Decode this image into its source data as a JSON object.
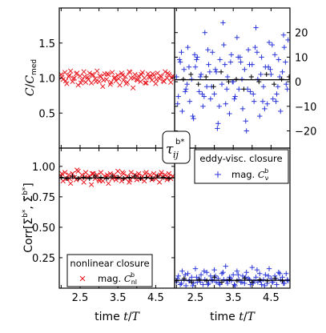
{
  "colors": {
    "red": "#e8141c",
    "blue": "#2a35d8",
    "black": "#000000"
  },
  "center_label": "τ_ij^{b*}",
  "chart_data": [
    {
      "panel": "top-left",
      "type": "scatter",
      "ylabel": "C/C_med",
      "xlim": [
        1.95,
        5.0
      ],
      "ylim": [
        0.0,
        2.0
      ],
      "yticks": [
        "0.5",
        "1.0",
        "1.5"
      ],
      "series": [
        {
          "color": "red",
          "marker": "x",
          "x": [
            2.0,
            2.05,
            2.1,
            2.15,
            2.2,
            2.25,
            2.3,
            2.35,
            2.4,
            2.45,
            2.5,
            2.55,
            2.6,
            2.65,
            2.7,
            2.75,
            2.8,
            2.85,
            2.9,
            2.95,
            3.0,
            3.05,
            3.1,
            3.15,
            3.2,
            3.25,
            3.3,
            3.35,
            3.4,
            3.45,
            3.5,
            3.55,
            3.6,
            3.65,
            3.7,
            3.75,
            3.8,
            3.85,
            3.9,
            3.95,
            4.0,
            4.05,
            4.1,
            4.15,
            4.2,
            4.25,
            4.3,
            4.35,
            4.4,
            4.45,
            4.5,
            4.55,
            4.6,
            4.65,
            4.7,
            4.75,
            4.8,
            4.85,
            4.9,
            4.95,
            2.02,
            2.12,
            2.22,
            2.32,
            2.42,
            2.52,
            2.62,
            2.72,
            2.82,
            2.92,
            3.02,
            3.12,
            3.22,
            3.32,
            3.42,
            3.52,
            3.62,
            3.72,
            3.82,
            3.92,
            4.02,
            4.12,
            4.22,
            4.32,
            4.42,
            4.52,
            4.62,
            4.72,
            4.82,
            4.92
          ],
          "y": [
            1.05,
            0.98,
            1.08,
            0.92,
            1.02,
            1.1,
            0.95,
            1.0,
            1.06,
            0.9,
            1.03,
            0.97,
            1.09,
            0.94,
            1.01,
            1.07,
            0.93,
            1.04,
            0.99,
            1.1,
            0.95,
            1.02,
            0.88,
            1.06,
            0.98,
            1.05,
            0.91,
            1.08,
            1.0,
            0.96,
            1.04,
            0.9,
            1.07,
            0.97,
            1.02,
            0.94,
            1.09,
            1.0,
            0.86,
            1.05,
            0.98,
            1.03,
            0.95,
            1.08,
            1.0,
            0.93,
            1.06,
            1.01,
            0.97,
            1.04,
            0.92,
            1.07,
            0.99,
            1.02,
            0.96,
            1.09,
            1.0,
            1.05,
            0.94,
            1.03,
            1.01,
            0.96,
            1.04,
            0.99,
            1.07,
            0.93,
            1.02,
            0.98,
            1.05,
            0.95,
            1.03,
            0.97,
            1.06,
            0.94,
            1.01,
            0.99,
            1.04,
            0.92,
            1.08,
            1.0,
            0.97,
            1.05,
            0.93,
            1.02,
            1.06,
            0.98,
            1.03,
            0.95,
            1.07,
            1.0
          ]
        }
      ]
    },
    {
      "panel": "top-right",
      "type": "scatter",
      "xlim": [
        1.95,
        5.0
      ],
      "ylim": [
        -27,
        30
      ],
      "yticks": [
        "−20",
        "−10",
        "0",
        "10",
        "20"
      ],
      "yaxis_side": "right",
      "series": [
        {
          "color": "blue",
          "marker": "+",
          "x": [
            2.0,
            2.05,
            2.1,
            2.15,
            2.2,
            2.25,
            2.3,
            2.35,
            2.4,
            2.45,
            2.5,
            2.55,
            2.6,
            2.65,
            2.7,
            2.75,
            2.8,
            2.85,
            2.9,
            2.95,
            3.0,
            3.05,
            3.1,
            3.15,
            3.2,
            3.25,
            3.3,
            3.35,
            3.4,
            3.45,
            3.5,
            3.55,
            3.6,
            3.65,
            3.7,
            3.75,
            3.8,
            3.85,
            3.9,
            3.95,
            4.0,
            4.05,
            4.1,
            4.15,
            4.2,
            4.25,
            4.3,
            4.35,
            4.4,
            4.45,
            4.5,
            4.55,
            4.6,
            4.65,
            4.7,
            4.75,
            4.8,
            4.85,
            4.9,
            4.95,
            2.03,
            2.13,
            2.23,
            2.33,
            2.43,
            2.53,
            2.63,
            2.73,
            2.83,
            2.93,
            3.03,
            3.13,
            3.23,
            3.33,
            3.43,
            3.53,
            3.63,
            3.73,
            3.83,
            3.93,
            4.03,
            4.13,
            4.23,
            4.33,
            4.43,
            4.53,
            4.63,
            4.73,
            4.83,
            4.93,
            2.08,
            2.28,
            2.48,
            2.68,
            2.88,
            3.08,
            3.28,
            3.48,
            3.68,
            3.88,
            4.08,
            4.28,
            4.48,
            4.68,
            4.88
          ],
          "y": [
            2,
            -6,
            8,
            -12,
            5,
            -3,
            14,
            -8,
            1,
            -15,
            6,
            10,
            -4,
            3,
            -10,
            20,
            -2,
            7,
            -7,
            12,
            -5,
            4,
            -17,
            9,
            -1,
            15,
            -9,
            2,
            -13,
            11,
            0,
            -6,
            18,
            -3,
            8,
            -11,
            5,
            -20,
            13,
            -4,
            7,
            -8,
            22,
            1,
            -14,
            10,
            -2,
            6,
            -9,
            16,
            3,
            -7,
            11,
            -5,
            9,
            -12,
            4,
            14,
            -1,
            17,
            -9,
            12,
            -4,
            6,
            -14,
            9,
            2,
            -6,
            13,
            -2,
            5,
            -10,
            24,
            -3,
            8,
            -7,
            10,
            1,
            -16,
            7,
            -5,
            12,
            3,
            -11,
            6,
            15,
            -8,
            2,
            19,
            -3,
            9,
            -1,
            11,
            -5,
            4,
            -19,
            7,
            0,
            10,
            -3,
            14,
            -8,
            5,
            -2,
            8
          ],
          "black_x": [
            2.18,
            2.38,
            2.58,
            2.78,
            2.98,
            3.18,
            3.38,
            3.58,
            3.78,
            3.98,
            4.18,
            4.38,
            4.58,
            4.78,
            4.98
          ],
          "black_y": [
            1,
            3,
            -1,
            2,
            -2,
            4,
            0,
            1,
            -3,
            2,
            0,
            3,
            -1,
            1,
            2
          ]
        }
      ]
    },
    {
      "panel": "bottom-left",
      "type": "scatter",
      "ylabel": "Corr[Σ^{b*}, Σ̃^{b*}]",
      "xlabel": "time t/T",
      "xlim": [
        1.95,
        5.0
      ],
      "ylim": [
        0.0,
        1.15
      ],
      "xticks": [
        "2.5",
        "3.5",
        "4.5"
      ],
      "yticks": [
        "0.25",
        "0.50",
        "0.75",
        "1.00"
      ],
      "legend": {
        "title": "nonlinear closure",
        "entry": "mag. C_nl^b",
        "placement": "bottom-right"
      },
      "series": [
        {
          "color": "red",
          "marker": "x",
          "x": [
            2.0,
            2.05,
            2.1,
            2.15,
            2.2,
            2.25,
            2.3,
            2.35,
            2.4,
            2.45,
            2.5,
            2.55,
            2.6,
            2.65,
            2.7,
            2.75,
            2.8,
            2.85,
            2.9,
            2.95,
            3.0,
            3.05,
            3.1,
            3.15,
            3.2,
            3.25,
            3.3,
            3.35,
            3.4,
            3.45,
            3.5,
            3.55,
            3.6,
            3.65,
            3.7,
            3.75,
            3.8,
            3.85,
            3.9,
            3.95,
            4.0,
            4.05,
            4.1,
            4.15,
            4.2,
            4.25,
            4.3,
            4.35,
            4.4,
            4.45,
            4.5,
            4.55,
            4.6,
            4.65,
            4.7,
            4.75,
            4.8,
            4.85,
            4.9,
            4.95,
            2.02,
            2.22,
            2.42,
            2.62,
            2.82,
            3.02,
            3.22,
            3.42,
            3.62,
            3.82,
            4.02,
            4.22,
            4.42,
            4.62,
            4.82
          ],
          "y": [
            0.92,
            0.88,
            0.95,
            0.9,
            0.93,
            0.86,
            0.94,
            0.91,
            0.89,
            0.96,
            0.9,
            0.93,
            0.87,
            0.95,
            0.91,
            0.92,
            0.85,
            0.94,
            0.9,
            0.93,
            0.89,
            0.95,
            0.88,
            0.92,
            0.91,
            0.86,
            0.94,
            0.9,
            0.93,
            0.89,
            0.96,
            0.91,
            0.88,
            0.94,
            0.9,
            0.92,
            0.87,
            0.95,
            0.91,
            0.93,
            0.89,
            0.94,
            0.9,
            0.92,
            0.88,
            0.95,
            0.91,
            0.93,
            0.89,
            0.94,
            0.9,
            0.92,
            0.87,
            0.95,
            0.91,
            0.93,
            0.89,
            0.94,
            0.9,
            0.92,
            0.94,
            0.9,
            0.97,
            0.91,
            0.94,
            0.88,
            0.93,
            0.91,
            0.95,
            0.89,
            0.92,
            0.94,
            0.9,
            0.93,
            0.91
          ],
          "black_x": [
            2.0,
            2.15,
            2.3,
            2.45,
            2.6,
            2.75,
            2.9,
            3.05,
            3.2,
            3.35,
            3.5,
            3.65,
            3.8,
            3.95,
            4.1,
            4.25,
            4.4,
            4.55,
            4.7,
            4.85
          ],
          "black_y": [
            0.91,
            0.9,
            0.92,
            0.9,
            0.91,
            0.9,
            0.92,
            0.91,
            0.9,
            0.92,
            0.91,
            0.9,
            0.91,
            0.92,
            0.9,
            0.91,
            0.9,
            0.92,
            0.91,
            0.9
          ]
        }
      ]
    },
    {
      "panel": "bottom-right",
      "type": "scatter",
      "xlabel": "time t/T",
      "xlim": [
        1.95,
        5.0
      ],
      "ylim": [
        0.0,
        1.15
      ],
      "xticks": [
        "2.5",
        "3.5",
        "4.5"
      ],
      "legend": {
        "title": "eddy-visc. closure",
        "entry": "mag. C_ν^b",
        "placement": "top-right"
      },
      "series": [
        {
          "color": "blue",
          "marker": "+",
          "x": [
            2.0,
            2.05,
            2.1,
            2.15,
            2.2,
            2.25,
            2.3,
            2.35,
            2.4,
            2.45,
            2.5,
            2.55,
            2.6,
            2.65,
            2.7,
            2.75,
            2.8,
            2.85,
            2.9,
            2.95,
            3.0,
            3.05,
            3.1,
            3.15,
            3.2,
            3.25,
            3.3,
            3.35,
            3.4,
            3.45,
            3.5,
            3.55,
            3.6,
            3.65,
            3.7,
            3.75,
            3.8,
            3.85,
            3.9,
            3.95,
            4.0,
            4.05,
            4.1,
            4.15,
            4.2,
            4.25,
            4.3,
            4.35,
            4.4,
            4.45,
            4.5,
            4.55,
            4.6,
            4.65,
            4.7,
            4.75,
            4.8,
            4.85,
            4.9,
            4.95,
            2.03,
            2.13,
            2.23,
            2.33,
            2.43,
            2.53,
            2.63,
            2.73,
            2.83,
            2.93,
            3.03,
            3.13,
            3.23,
            3.33,
            3.43,
            3.53,
            3.63,
            3.73,
            3.83,
            3.93,
            4.03,
            4.13,
            4.23,
            4.33,
            4.43,
            4.53,
            4.63,
            4.73,
            4.83,
            4.93
          ],
          "y": [
            0.05,
            0.1,
            0.03,
            0.14,
            0.07,
            0.02,
            0.12,
            0.06,
            0.09,
            0.04,
            0.16,
            0.05,
            0.08,
            0.11,
            0.03,
            0.07,
            0.13,
            0.04,
            0.1,
            0.06,
            0.15,
            0.05,
            0.08,
            0.03,
            0.12,
            0.07,
            0.18,
            0.04,
            0.09,
            0.06,
            0.11,
            0.02,
            0.14,
            0.07,
            0.05,
            0.1,
            0.04,
            0.13,
            0.08,
            0.03,
            0.17,
            0.06,
            0.09,
            0.05,
            0.12,
            0.03,
            0.07,
            0.11,
            0.04,
            0.16,
            0.08,
            0.05,
            0.1,
            0.03,
            0.13,
            0.07,
            0.09,
            0.04,
            0.12,
            0.06,
            0.08,
            0.04,
            0.11,
            0.06,
            0.02,
            0.09,
            0.05,
            0.14,
            0.03,
            0.07,
            0.1,
            0.04,
            0.13,
            0.06,
            0.08,
            0.03,
            0.11,
            0.05,
            0.09,
            0.07,
            0.04,
            0.15,
            0.06,
            0.02,
            0.1,
            0.05,
            0.08,
            0.12,
            0.04,
            0.07
          ],
          "black_x": [
            2.0,
            2.2,
            2.4,
            2.6,
            2.8,
            3.0,
            3.2,
            3.4,
            3.6,
            3.8,
            4.0,
            4.2,
            4.4,
            4.6,
            4.8
          ],
          "black_y": [
            0.06,
            0.08,
            0.05,
            0.07,
            0.06,
            0.09,
            0.05,
            0.07,
            0.06,
            0.08,
            0.05,
            0.07,
            0.06,
            0.08,
            0.06
          ]
        }
      ]
    }
  ]
}
